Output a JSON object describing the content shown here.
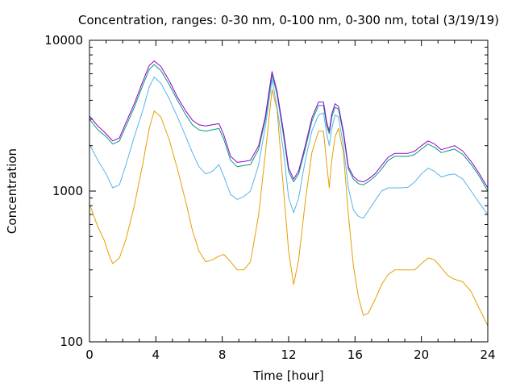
{
  "chart_data": {
    "type": "line",
    "title": "Concentration, ranges: 0-30 nm, 0-100 nm, 0-300 nm, total (3/19/19)",
    "xlabel": "Time [hour]",
    "ylabel": "Concentration",
    "xlim": [
      0,
      24
    ],
    "ylim": [
      100,
      10000
    ],
    "yscale": "log",
    "grid": false,
    "legend": "none",
    "xticks": [
      0,
      4,
      8,
      12,
      16,
      20,
      24
    ],
    "xtick_labels": [
      "0",
      "4",
      "8",
      "12",
      "16",
      "20",
      "24"
    ],
    "yticks": [
      100,
      1000,
      10000
    ],
    "ytick_labels": [
      "100",
      "1000",
      "10000"
    ],
    "series": [
      {
        "color": "#e69f00",
        "x": [
          0,
          0.5,
          0.9,
          1.2,
          1.4,
          1.8,
          2.2,
          2.7,
          3.2,
          3.6,
          3.9,
          4.3,
          4.8,
          5.3,
          5.8,
          6.2,
          6.6,
          7.0,
          7.4,
          7.8,
          8.1,
          8.5,
          8.9,
          9.3,
          9.7,
          10.2,
          10.6,
          11.0,
          11.3,
          11.7,
          12.0,
          12.3,
          12.6,
          13.0,
          13.4,
          13.8,
          14.1,
          14.3,
          14.45,
          14.6,
          14.8,
          15.0,
          15.3,
          15.6,
          15.9,
          16.2,
          16.5,
          16.8,
          17.2,
          17.6,
          18.0,
          18.4,
          18.8,
          19.2,
          19.6,
          20.0,
          20.4,
          20.8,
          21.2,
          21.6,
          22.0,
          22.5,
          23.0,
          23.5,
          24.0
        ],
        "values": [
          820,
          580,
          470,
          370,
          330,
          360,
          480,
          800,
          1500,
          2600,
          3400,
          3100,
          2200,
          1400,
          850,
          550,
          400,
          340,
          350,
          370,
          380,
          340,
          300,
          300,
          340,
          700,
          1800,
          4700,
          3500,
          1000,
          400,
          240,
          350,
          850,
          1800,
          2500,
          2500,
          1500,
          1050,
          1600,
          2300,
          2600,
          1800,
          700,
          320,
          200,
          150,
          155,
          190,
          240,
          280,
          300,
          300,
          300,
          300,
          330,
          360,
          350,
          310,
          275,
          260,
          250,
          215,
          165,
          128
        ]
      },
      {
        "color": "#56b4e9",
        "x": [
          0,
          0.5,
          1.0,
          1.4,
          1.8,
          2.2,
          2.7,
          3.2,
          3.6,
          3.9,
          4.3,
          4.8,
          5.3,
          5.8,
          6.2,
          6.6,
          7.0,
          7.4,
          7.8,
          8.1,
          8.5,
          8.9,
          9.3,
          9.7,
          10.2,
          10.6,
          11.0,
          11.3,
          11.7,
          12.0,
          12.3,
          12.6,
          13.0,
          13.4,
          13.8,
          14.1,
          14.3,
          14.45,
          14.6,
          14.8,
          15.0,
          15.3,
          15.6,
          15.9,
          16.2,
          16.5,
          16.8,
          17.2,
          17.6,
          18.0,
          18.4,
          18.8,
          19.2,
          19.6,
          20.0,
          20.4,
          20.8,
          21.2,
          21.6,
          22.0,
          22.5,
          23.0,
          23.5,
          24.0
        ],
        "values": [
          2050,
          1600,
          1300,
          1050,
          1100,
          1500,
          2300,
          3400,
          4900,
          5700,
          5200,
          4100,
          3100,
          2300,
          1800,
          1450,
          1300,
          1350,
          1500,
          1250,
          950,
          880,
          920,
          1000,
          1500,
          2700,
          5500,
          3600,
          1800,
          900,
          720,
          900,
          1600,
          2500,
          3200,
          3300,
          2400,
          2000,
          2600,
          3200,
          3100,
          2000,
          1050,
          750,
          680,
          660,
          740,
          860,
          1000,
          1050,
          1050,
          1050,
          1060,
          1150,
          1300,
          1420,
          1350,
          1240,
          1280,
          1300,
          1200,
          1000,
          830,
          700
        ]
      },
      {
        "color": "#009e73",
        "x": [
          0,
          0.5,
          1.0,
          1.4,
          1.8,
          2.2,
          2.7,
          3.2,
          3.6,
          3.9,
          4.3,
          4.8,
          5.3,
          5.8,
          6.2,
          6.6,
          7.0,
          7.4,
          7.8,
          8.1,
          8.5,
          8.9,
          9.3,
          9.7,
          10.2,
          10.6,
          11.0,
          11.3,
          11.7,
          12.0,
          12.3,
          12.6,
          13.0,
          13.4,
          13.8,
          14.1,
          14.3,
          14.45,
          14.6,
          14.8,
          15.0,
          15.3,
          15.6,
          15.9,
          16.2,
          16.5,
          16.8,
          17.2,
          17.6,
          18.0,
          18.4,
          18.8,
          19.2,
          19.6,
          20.0,
          20.4,
          20.8,
          21.2,
          21.6,
          22.0,
          22.5,
          23.0,
          23.5,
          24.0
        ],
        "values": [
          3000,
          2550,
          2300,
          2050,
          2150,
          2700,
          3600,
          5000,
          6400,
          6900,
          6300,
          5100,
          4000,
          3200,
          2750,
          2550,
          2500,
          2550,
          2600,
          2200,
          1600,
          1450,
          1480,
          1500,
          1900,
          3000,
          5900,
          4400,
          2300,
          1350,
          1150,
          1300,
          1900,
          2900,
          3700,
          3700,
          2700,
          2400,
          3100,
          3600,
          3500,
          2400,
          1400,
          1200,
          1120,
          1100,
          1150,
          1250,
          1400,
          1600,
          1700,
          1700,
          1700,
          1750,
          1900,
          2050,
          1950,
          1800,
          1850,
          1900,
          1750,
          1500,
          1250,
          1000
        ]
      },
      {
        "color": "#9400d3",
        "x": [
          0,
          0.5,
          1.0,
          1.4,
          1.8,
          2.2,
          2.7,
          3.2,
          3.6,
          3.9,
          4.3,
          4.8,
          5.3,
          5.8,
          6.2,
          6.6,
          7.0,
          7.4,
          7.8,
          8.1,
          8.5,
          8.9,
          9.3,
          9.7,
          10.2,
          10.6,
          11.0,
          11.3,
          11.7,
          12.0,
          12.3,
          12.6,
          13.0,
          13.4,
          13.8,
          14.1,
          14.3,
          14.45,
          14.6,
          14.8,
          15.0,
          15.3,
          15.6,
          15.9,
          16.2,
          16.5,
          16.8,
          17.2,
          17.6,
          18.0,
          18.4,
          18.8,
          19.2,
          19.6,
          20.0,
          20.4,
          20.8,
          21.2,
          21.6,
          22.0,
          22.5,
          23.0,
          23.5,
          24.0
        ],
        "values": [
          3150,
          2700,
          2400,
          2150,
          2250,
          2850,
          3800,
          5300,
          6800,
          7300,
          6700,
          5400,
          4200,
          3400,
          2950,
          2750,
          2700,
          2750,
          2800,
          2350,
          1700,
          1550,
          1570,
          1600,
          2000,
          3150,
          6200,
          4600,
          2450,
          1420,
          1200,
          1360,
          2000,
          3050,
          3900,
          3900,
          2850,
          2500,
          3250,
          3800,
          3650,
          2500,
          1450,
          1250,
          1170,
          1150,
          1200,
          1300,
          1480,
          1680,
          1780,
          1780,
          1780,
          1840,
          2000,
          2150,
          2050,
          1880,
          1940,
          2000,
          1840,
          1570,
          1300,
          1050
        ]
      }
    ]
  }
}
